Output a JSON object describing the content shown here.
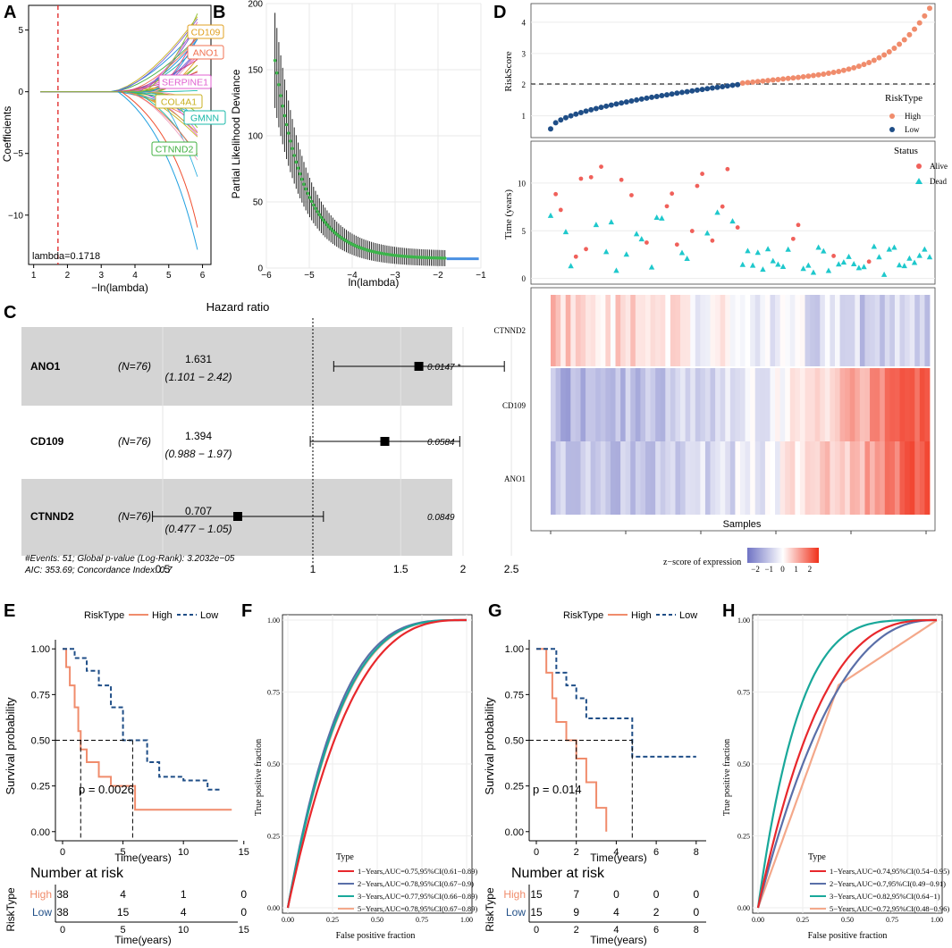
{
  "colors": {
    "high": "#f08c6c",
    "low": "#1f4e87",
    "alive": "#f0605a",
    "dead": "#1ec8cc",
    "lasso_dev": "#3cb44b",
    "lasso_dev_tail": "#4a90e2",
    "roc1": "#e8282c",
    "roc2": "#5a6fa8",
    "roc3": "#19a89a",
    "roc5": "#f4a88a",
    "heat_low": "#6f73c4",
    "heat_high": "#f0301a"
  },
  "panels": {
    "A": {
      "letter": "A",
      "xlabel": "−ln(lambda)",
      "ylabel": "Coefficients",
      "xticks": [
        "1",
        "2",
        "3",
        "4",
        "5",
        "6"
      ],
      "yticks": [
        "5",
        "0",
        "−5",
        "−10"
      ],
      "lambda_label": "lambda=0.1718",
      "genes": [
        {
          "name": "CD109",
          "color": "#e0a020"
        },
        {
          "name": "ANO1",
          "color": "#f07050"
        },
        {
          "name": "SERPINE1",
          "color": "#e060d0"
        },
        {
          "name": "COL4A1",
          "color": "#c8b020"
        },
        {
          "name": "GMNN",
          "color": "#18b8a8"
        },
        {
          "name": "CTNND2",
          "color": "#40b040"
        }
      ]
    },
    "B": {
      "letter": "B",
      "xlabel": "ln(lambda)",
      "ylabel": "Partial Likelihood Deviance",
      "xticks": [
        "−6",
        "−5",
        "−4",
        "−3",
        "−2",
        "−1"
      ],
      "yticks": [
        "0",
        "50",
        "100",
        "150",
        "200"
      ]
    },
    "C": {
      "letter": "C",
      "title": "Hazard ratio",
      "rows": [
        {
          "gene": "ANO1",
          "n": "(N=76)",
          "hr": "1.631",
          "ci": "(1.101 − 2.42)",
          "p": "0.0147 *",
          "hr_value": 1.631,
          "lo": 1.101,
          "hi": 2.42
        },
        {
          "gene": "CD109",
          "n": "(N=76)",
          "hr": "1.394",
          "ci": "(0.988 − 1.97)",
          "p": "0.0584",
          "hr_value": 1.394,
          "lo": 0.988,
          "hi": 1.97
        },
        {
          "gene": "CTNND2",
          "n": "(N=76)",
          "hr": "0.707",
          "ci": "(0.477 − 1.05)",
          "p": "0.0849",
          "hr_value": 0.707,
          "lo": 0.477,
          "hi": 1.05
        }
      ],
      "footer1": "#Events: 51; Global p-value (Log-Rank): 3.2032e−05",
      "footer2": "AIC: 353.69; Concordance Index: 0.7",
      "xticks": [
        "0.5",
        "1",
        "1.5",
        "2",
        "2.5"
      ]
    },
    "D": {
      "letter": "D",
      "risk_ylabel": "RiskScore",
      "risk_yticks": [
        "1",
        "2",
        "3",
        "4"
      ],
      "risk_legend_title": "RiskType",
      "risk_legend": [
        "High",
        "Low"
      ],
      "time_ylabel": "Time (years)",
      "time_yticks": [
        "0",
        "5",
        "10"
      ],
      "status_legend_title": "Status",
      "status_legend": [
        "Alive",
        "Dead"
      ],
      "heat_rows": [
        "CTNND2",
        "CD109",
        "ANO1"
      ],
      "xlabel": "Samples",
      "zscore_title": "z−score of expression",
      "zscore_ticks": [
        "−2",
        "−1",
        "0",
        "1",
        "2"
      ]
    },
    "E": {
      "letter": "E",
      "legend_title": "RiskType",
      "legend": [
        "High",
        "Low"
      ],
      "ylabel": "Survival probability",
      "xlabel": "Time(years)",
      "yticks": [
        "0.00",
        "0.25",
        "0.50",
        "0.75",
        "1.00"
      ],
      "xticks": [
        "0",
        "5",
        "10",
        "15"
      ],
      "pvalue": "p = 0.0026",
      "risk_title": "Number at risk",
      "risk_ylabel": "RiskType",
      "risk_rows": [
        {
          "label": "High",
          "values": [
            "38",
            "4",
            "1",
            "0"
          ]
        },
        {
          "label": "Low",
          "values": [
            "38",
            "15",
            "4",
            "0"
          ]
        }
      ]
    },
    "F": {
      "letter": "F",
      "xlabel": "False positive fraction",
      "ylabel": "True positive fraction",
      "ticks": [
        "0.00",
        "0.25",
        "0.50",
        "0.75",
        "1.00"
      ],
      "legend_title": "Type",
      "legend": [
        "1−Years,AUC=0.75,95%CI(0.61−0.89)",
        "2−Years,AUC=0.78,95%CI(0.67−0.9)",
        "3−Years,AUC=0.77,95%CI(0.66−0.89)",
        "5−Years,AUC=0.78,95%CI(0.67−0.89)"
      ]
    },
    "G": {
      "letter": "G",
      "legend_title": "RiskType",
      "legend": [
        "High",
        "Low"
      ],
      "ylabel": "Survival probability",
      "xlabel": "Time(years)",
      "yticks": [
        "0.00",
        "0.25",
        "0.50",
        "0.75",
        "1.00"
      ],
      "xticks": [
        "0",
        "2",
        "4",
        "6",
        "8"
      ],
      "pvalue": "p = 0.014",
      "risk_title": "Number at risk",
      "risk_ylabel": "RiskType",
      "risk_rows": [
        {
          "label": "High",
          "values": [
            "15",
            "7",
            "0",
            "0",
            "0"
          ]
        },
        {
          "label": "Low",
          "values": [
            "15",
            "9",
            "4",
            "2",
            "0"
          ]
        }
      ]
    },
    "H": {
      "letter": "H",
      "xlabel": "False positive fraction",
      "ylabel": "True positive fraction",
      "ticks": [
        "0.00",
        "0.25",
        "0.50",
        "0.75",
        "1.00"
      ],
      "legend_title": "Type",
      "legend": [
        "1−Years,AUC=0.74,95%CI(0.54−0.95)",
        "2−Years,AUC=0.7,95%CI(0.49−0.91)",
        "3−Years,AUC=0.82,95%CI(0.64−1)",
        "5−Years,AUC=0.72,95%CI(0.48−0.96)"
      ]
    }
  },
  "chart_data": [
    {
      "panel": "A",
      "type": "line",
      "title": "",
      "xlabel": "−ln(lambda)",
      "ylabel": "Coefficients",
      "xlim": [
        1,
        6.2
      ],
      "ylim": [
        -14,
        7
      ],
      "lambda_cut": 1.72
    },
    {
      "panel": "B",
      "type": "scatter",
      "xlabel": "ln(lambda)",
      "ylabel": "Partial Likelihood Deviance",
      "xlim": [
        -6,
        -1
      ],
      "ylim": [
        0,
        200
      ]
    },
    {
      "panel": "C",
      "type": "scatter",
      "title": "Hazard ratio",
      "categories": [
        "ANO1",
        "CD109",
        "CTNND2"
      ],
      "values": [
        1.631,
        1.394,
        0.707
      ],
      "ci_low": [
        1.101,
        0.988,
        0.477
      ],
      "ci_high": [
        2.42,
        1.97,
        1.05
      ]
    },
    {
      "panel": "E",
      "type": "line",
      "xlabel": "Time(years)",
      "ylabel": "Survival probability",
      "series": [
        {
          "name": "High",
          "x": [
            0,
            0.3,
            0.6,
            1,
            1.3,
            1.5,
            2,
            3,
            4,
            5,
            6,
            7,
            14
          ],
          "y": [
            1,
            0.9,
            0.8,
            0.68,
            0.55,
            0.45,
            0.38,
            0.3,
            0.25,
            0.25,
            0.12,
            0.12,
            0.12
          ]
        },
        {
          "name": "Low",
          "x": [
            0,
            1,
            2,
            3,
            4,
            5,
            6,
            7,
            8,
            10,
            12,
            13
          ],
          "y": [
            1,
            0.95,
            0.88,
            0.8,
            0.68,
            0.5,
            0.5,
            0.38,
            0.3,
            0.28,
            0.23,
            0.23
          ]
        }
      ]
    },
    {
      "panel": "F",
      "type": "line",
      "xlabel": "False positive fraction",
      "ylabel": "True positive fraction",
      "series": [
        {
          "name": "1-Years",
          "auc": 0.75
        },
        {
          "name": "2-Years",
          "auc": 0.78
        },
        {
          "name": "3-Years",
          "auc": 0.77
        },
        {
          "name": "5-Years",
          "auc": 0.78
        }
      ]
    },
    {
      "panel": "G",
      "type": "line",
      "xlabel": "Time(years)",
      "ylabel": "Survival probability",
      "series": [
        {
          "name": "High",
          "x": [
            0,
            0.5,
            0.8,
            1,
            1.5,
            2,
            2.5,
            3,
            3.5
          ],
          "y": [
            1,
            0.87,
            0.73,
            0.6,
            0.5,
            0.4,
            0.27,
            0.13,
            0
          ]
        },
        {
          "name": "Low",
          "x": [
            0,
            1,
            1.5,
            2,
            2.5,
            4.5,
            4.8,
            8
          ],
          "y": [
            1,
            0.87,
            0.8,
            0.73,
            0.62,
            0.62,
            0.41,
            0.41
          ]
        }
      ]
    },
    {
      "panel": "H",
      "type": "line",
      "xlabel": "False positive fraction",
      "ylabel": "True positive fraction",
      "series": [
        {
          "name": "1-Years",
          "auc": 0.74
        },
        {
          "name": "2-Years",
          "auc": 0.7
        },
        {
          "name": "3-Years",
          "auc": 0.82
        },
        {
          "name": "5-Years",
          "auc": 0.72
        }
      ]
    }
  ]
}
